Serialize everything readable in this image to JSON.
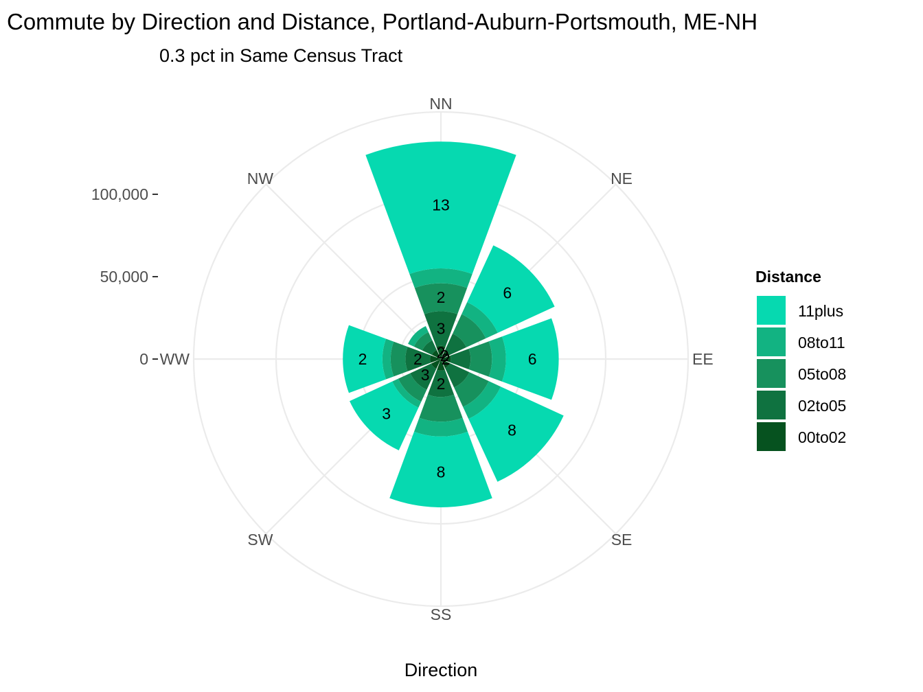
{
  "chart_data": {
    "type": "bar",
    "coord": "polar",
    "title": "Commute by Direction and Distance, Portland-Auburn-Portsmouth, ME-NH",
    "subtitle": "0.3 pct in Same Census Tract",
    "xlabel": "Direction",
    "categories": [
      "NN",
      "NE",
      "EE",
      "SE",
      "SS",
      "SW",
      "WW",
      "NW"
    ],
    "y_ticks": [
      {
        "value": 0,
        "label": "0"
      },
      {
        "value": 50000,
        "label": "50,000"
      },
      {
        "value": 100000,
        "label": "100,000"
      }
    ],
    "y_max": 150000,
    "grid": true,
    "legend": {
      "title": "Distance",
      "position": "right"
    },
    "series": [
      {
        "name": "00to02",
        "color": "#06521f",
        "values": [
          8000,
          6000,
          6000,
          6000,
          7000,
          6500,
          6500,
          6000
        ],
        "labels": [
          "2",
          "2",
          "2",
          "",
          "",
          "",
          "",
          ""
        ]
      },
      {
        "name": "02to05",
        "color": "#0f7240",
        "values": [
          21000,
          11000,
          12000,
          13000,
          16000,
          14000,
          15000,
          6500
        ],
        "labels": [
          "3",
          "",
          "",
          "",
          "2",
          "3",
          "2",
          ""
        ]
      },
      {
        "name": "05to08",
        "color": "#17915d",
        "values": [
          17000,
          13000,
          13000,
          13000,
          15000,
          8000,
          9000,
          5500
        ],
        "labels": [
          "2",
          "",
          "",
          "",
          "",
          "",
          "",
          ""
        ]
      },
      {
        "name": "08to11",
        "color": "#12b382",
        "values": [
          9000,
          8000,
          8500,
          8000,
          9000,
          4000,
          5000,
          4000
        ],
        "labels": [
          "",
          "",
          "",
          "",
          "",
          "",
          "",
          ""
        ]
      },
      {
        "name": "11plus",
        "color": "#06d9b0",
        "values": [
          77000,
          38000,
          32000,
          42000,
          43000,
          28500,
          24000,
          0
        ],
        "labels": [
          "13",
          "6",
          "6",
          "8",
          "8",
          "3",
          "2",
          ""
        ]
      }
    ]
  }
}
